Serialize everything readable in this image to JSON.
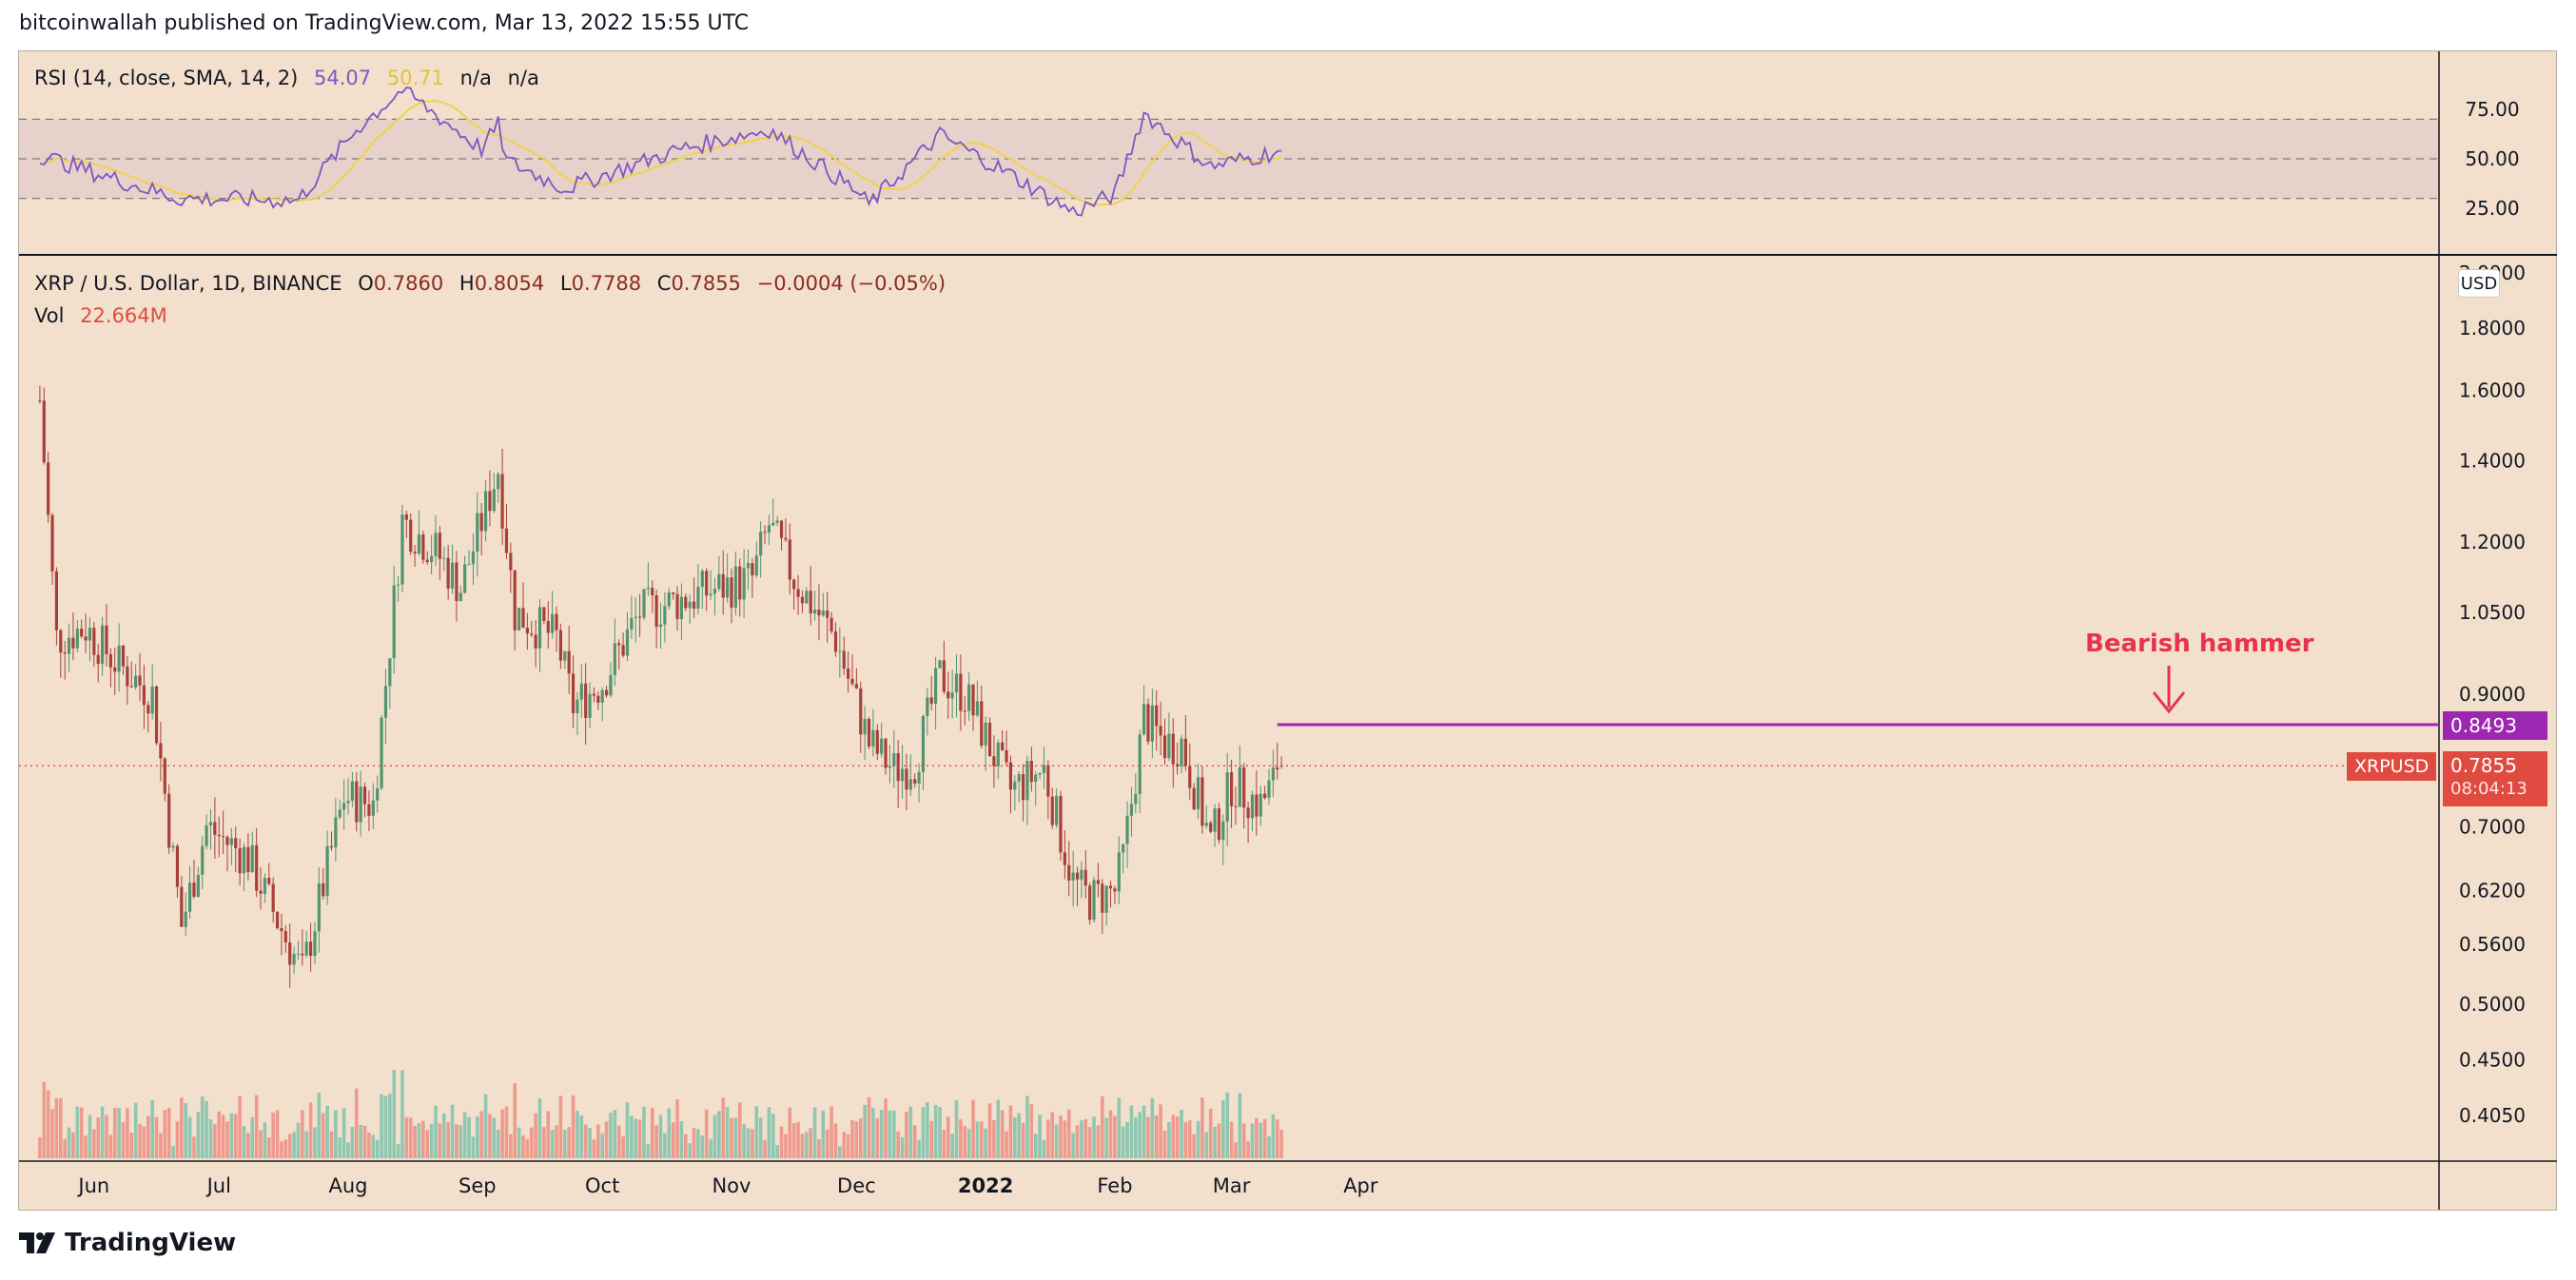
{
  "header": {
    "publisher": "bitcoinwallah published on TradingView.com, Mar 13, 2022 15:55 UTC"
  },
  "footer": {
    "brand": "TradingView",
    "logo_icon": "tradingview-logo-icon"
  },
  "rsi": {
    "label": "RSI (14, close, SMA, 14, 2)",
    "value": "54.07",
    "sma_value": "50.71",
    "extra1": "n/a",
    "extra2": "n/a",
    "ticks": [
      "75.00",
      "50.00",
      "25.00"
    ],
    "line_color": "#7e57c2",
    "sma_color": "#f0d24a",
    "band_color": "#e7d1cb"
  },
  "main": {
    "title": "XRP / U.S. Dollar, 1D, BINANCE",
    "o_label": "O",
    "o_value": "0.7860",
    "h_label": "H",
    "h_value": "0.8054",
    "l_label": "L",
    "l_value": "0.7788",
    "c_label": "C",
    "c_value": "0.7855",
    "change": "−0.0004 (−0.05%)",
    "vol_label": "Vol",
    "vol_value": "22.664M",
    "currency": "USD",
    "annotation": "Bearish hammer",
    "resistance_label": "0.8493",
    "symbol_tag": "XRPUSD",
    "last_price": "0.7855",
    "countdown": "08:04:13",
    "up_color": "#53946f",
    "down_color": "#a8403a",
    "annotation_color": "#e7334d",
    "resistance_color": "#9c27b0",
    "price_color": "#e04b41"
  },
  "chart_data": {
    "type": "candlestick",
    "title": "XRP / U.S. Dollar, 1D, BINANCE",
    "y_axis_ticks": [
      "2.0000",
      "1.8000",
      "1.6000",
      "1.4000",
      "1.2000",
      "1.0500",
      "0.9000",
      "0.7000",
      "0.6200",
      "0.5600",
      "0.5000",
      "0.4500",
      "0.4050"
    ],
    "x_axis_labels": [
      "Jun",
      "Jul",
      "Aug",
      "Sep",
      "Oct",
      "Nov",
      "Dec",
      "2022",
      "Feb",
      "Mar",
      "Apr"
    ],
    "y_scale": "log",
    "ylim": [
      0.37,
      2.0
    ],
    "resistance_level": 0.8493,
    "last_close": 0.7855,
    "trend_path": [
      {
        "date": "2021-05-19",
        "close": 1.57
      },
      {
        "date": "2021-05-23",
        "close": 1.0
      },
      {
        "date": "2021-05-30",
        "close": 1.02
      },
      {
        "date": "2021-06-07",
        "close": 0.95
      },
      {
        "date": "2021-06-15",
        "close": 0.9
      },
      {
        "date": "2021-06-22",
        "close": 0.58
      },
      {
        "date": "2021-06-28",
        "close": 0.7
      },
      {
        "date": "2021-07-08",
        "close": 0.66
      },
      {
        "date": "2021-07-21",
        "close": 0.53
      },
      {
        "date": "2021-07-31",
        "close": 0.74
      },
      {
        "date": "2021-08-07",
        "close": 0.73
      },
      {
        "date": "2021-08-14",
        "close": 1.25
      },
      {
        "date": "2021-08-22",
        "close": 1.18
      },
      {
        "date": "2021-08-28",
        "close": 1.1
      },
      {
        "date": "2021-09-06",
        "close": 1.38
      },
      {
        "date": "2021-09-10",
        "close": 1.05
      },
      {
        "date": "2021-09-20",
        "close": 1.0
      },
      {
        "date": "2021-09-24",
        "close": 0.88
      },
      {
        "date": "2021-10-01",
        "close": 0.92
      },
      {
        "date": "2021-10-10",
        "close": 1.05
      },
      {
        "date": "2021-10-25",
        "close": 1.09
      },
      {
        "date": "2021-11-06",
        "close": 1.12
      },
      {
        "date": "2021-11-10",
        "close": 1.24
      },
      {
        "date": "2021-11-16",
        "close": 1.12
      },
      {
        "date": "2021-11-26",
        "close": 1.0
      },
      {
        "date": "2021-12-04",
        "close": 0.82
      },
      {
        "date": "2021-12-10",
        "close": 0.78
      },
      {
        "date": "2021-12-15",
        "close": 0.79
      },
      {
        "date": "2021-12-21",
        "close": 0.93
      },
      {
        "date": "2021-12-27",
        "close": 0.9
      },
      {
        "date": "2022-01-07",
        "close": 0.75
      },
      {
        "date": "2022-01-15",
        "close": 0.78
      },
      {
        "date": "2022-01-22",
        "close": 0.63
      },
      {
        "date": "2022-01-26",
        "close": 0.61
      },
      {
        "date": "2022-02-01",
        "close": 0.62
      },
      {
        "date": "2022-02-03",
        "close": 0.66
      },
      {
        "date": "2022-02-08",
        "close": 0.86
      },
      {
        "date": "2022-02-13",
        "close": 0.82
      },
      {
        "date": "2022-02-17",
        "close": 0.82
      },
      {
        "date": "2022-02-24",
        "close": 0.68
      },
      {
        "date": "2022-03-01",
        "close": 0.76
      },
      {
        "date": "2022-03-08",
        "close": 0.73
      },
      {
        "date": "2022-03-11",
        "close": 0.76
      },
      {
        "date": "2022-03-12",
        "close": 0.79
      },
      {
        "date": "2022-03-13",
        "close": 0.7855
      }
    ],
    "rsi_path": [
      {
        "date": "2021-05-19",
        "rsi": 52
      },
      {
        "date": "2021-06-01",
        "rsi": 43
      },
      {
        "date": "2021-06-21",
        "rsi": 30
      },
      {
        "date": "2021-07-20",
        "rsi": 29
      },
      {
        "date": "2021-08-03",
        "rsi": 65
      },
      {
        "date": "2021-08-14",
        "rsi": 85
      },
      {
        "date": "2021-09-02",
        "rsi": 55
      },
      {
        "date": "2021-09-06",
        "rsi": 67
      },
      {
        "date": "2021-09-08",
        "rsi": 49
      },
      {
        "date": "2021-09-22",
        "rsi": 35
      },
      {
        "date": "2021-10-20",
        "rsi": 55
      },
      {
        "date": "2021-11-10",
        "rsi": 65
      },
      {
        "date": "2021-11-30",
        "rsi": 35
      },
      {
        "date": "2021-12-04",
        "rsi": 27
      },
      {
        "date": "2021-12-21",
        "rsi": 62
      },
      {
        "date": "2022-01-07",
        "rsi": 42
      },
      {
        "date": "2022-01-22",
        "rsi": 23
      },
      {
        "date": "2022-02-01",
        "rsi": 32
      },
      {
        "date": "2022-02-08",
        "rsi": 73
      },
      {
        "date": "2022-02-24",
        "rsi": 46
      },
      {
        "date": "2022-03-13",
        "rsi": 54.07
      }
    ]
  }
}
